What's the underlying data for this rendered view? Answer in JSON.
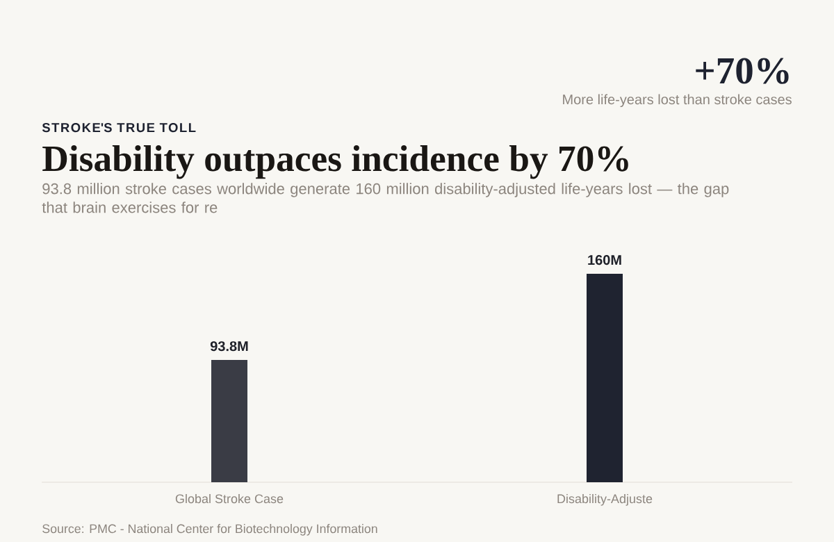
{
  "chart_data": {
    "type": "bar",
    "title": "Disability outpaces incidence by 70%",
    "subtitle": "93.8 million stroke cases worldwide generate 160 million disability-adjusted life-years lost — the gap that brain exercises for re",
    "categories": [
      "Global Stroke Case",
      "Disability-Adjuste"
    ],
    "values": [
      93.8,
      160
    ],
    "colors": [
      "#3a3c45",
      "#1f2330"
    ],
    "value_labels": [
      "93.8M",
      "160M"
    ],
    "annotations": [
      "STROKE'S TRUE TOLL",
      "+70%",
      "More life-years lost than stroke cases",
      "Source: PMC - National Center for Biotechnology Information"
    ]
  }
}
